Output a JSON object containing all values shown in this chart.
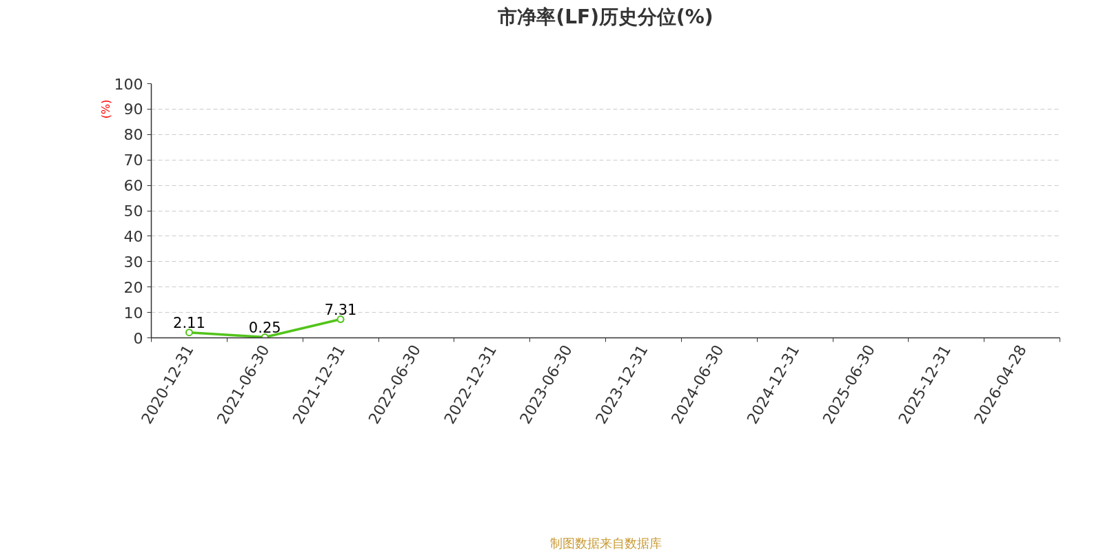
{
  "chart_data": {
    "type": "line",
    "title": "市净率(LF)历史分位(%)",
    "ylabel": "(%)",
    "annotations": [
      "制图数据来自数据库"
    ],
    "categories": [
      "2020-12-31",
      "2021-06-30",
      "2021-12-31",
      "2022-06-30",
      "2022-12-31",
      "2023-06-30",
      "2023-12-31",
      "2024-06-30",
      "2024-12-31",
      "2025-06-30",
      "2025-12-31",
      "2026-04-28"
    ],
    "series": [
      {
        "color": "#52c41a",
        "values": [
          2.11,
          0.25,
          7.31,
          null,
          null,
          null,
          null,
          null,
          null,
          null,
          null,
          null
        ]
      }
    ],
    "ylim": [
      0,
      100
    ],
    "yticks": [
      0,
      10,
      20,
      30,
      40,
      50,
      60,
      70,
      80,
      90,
      100
    ],
    "grid": "y",
    "marker": "circle",
    "line_style": "solid",
    "data_labels": true
  }
}
